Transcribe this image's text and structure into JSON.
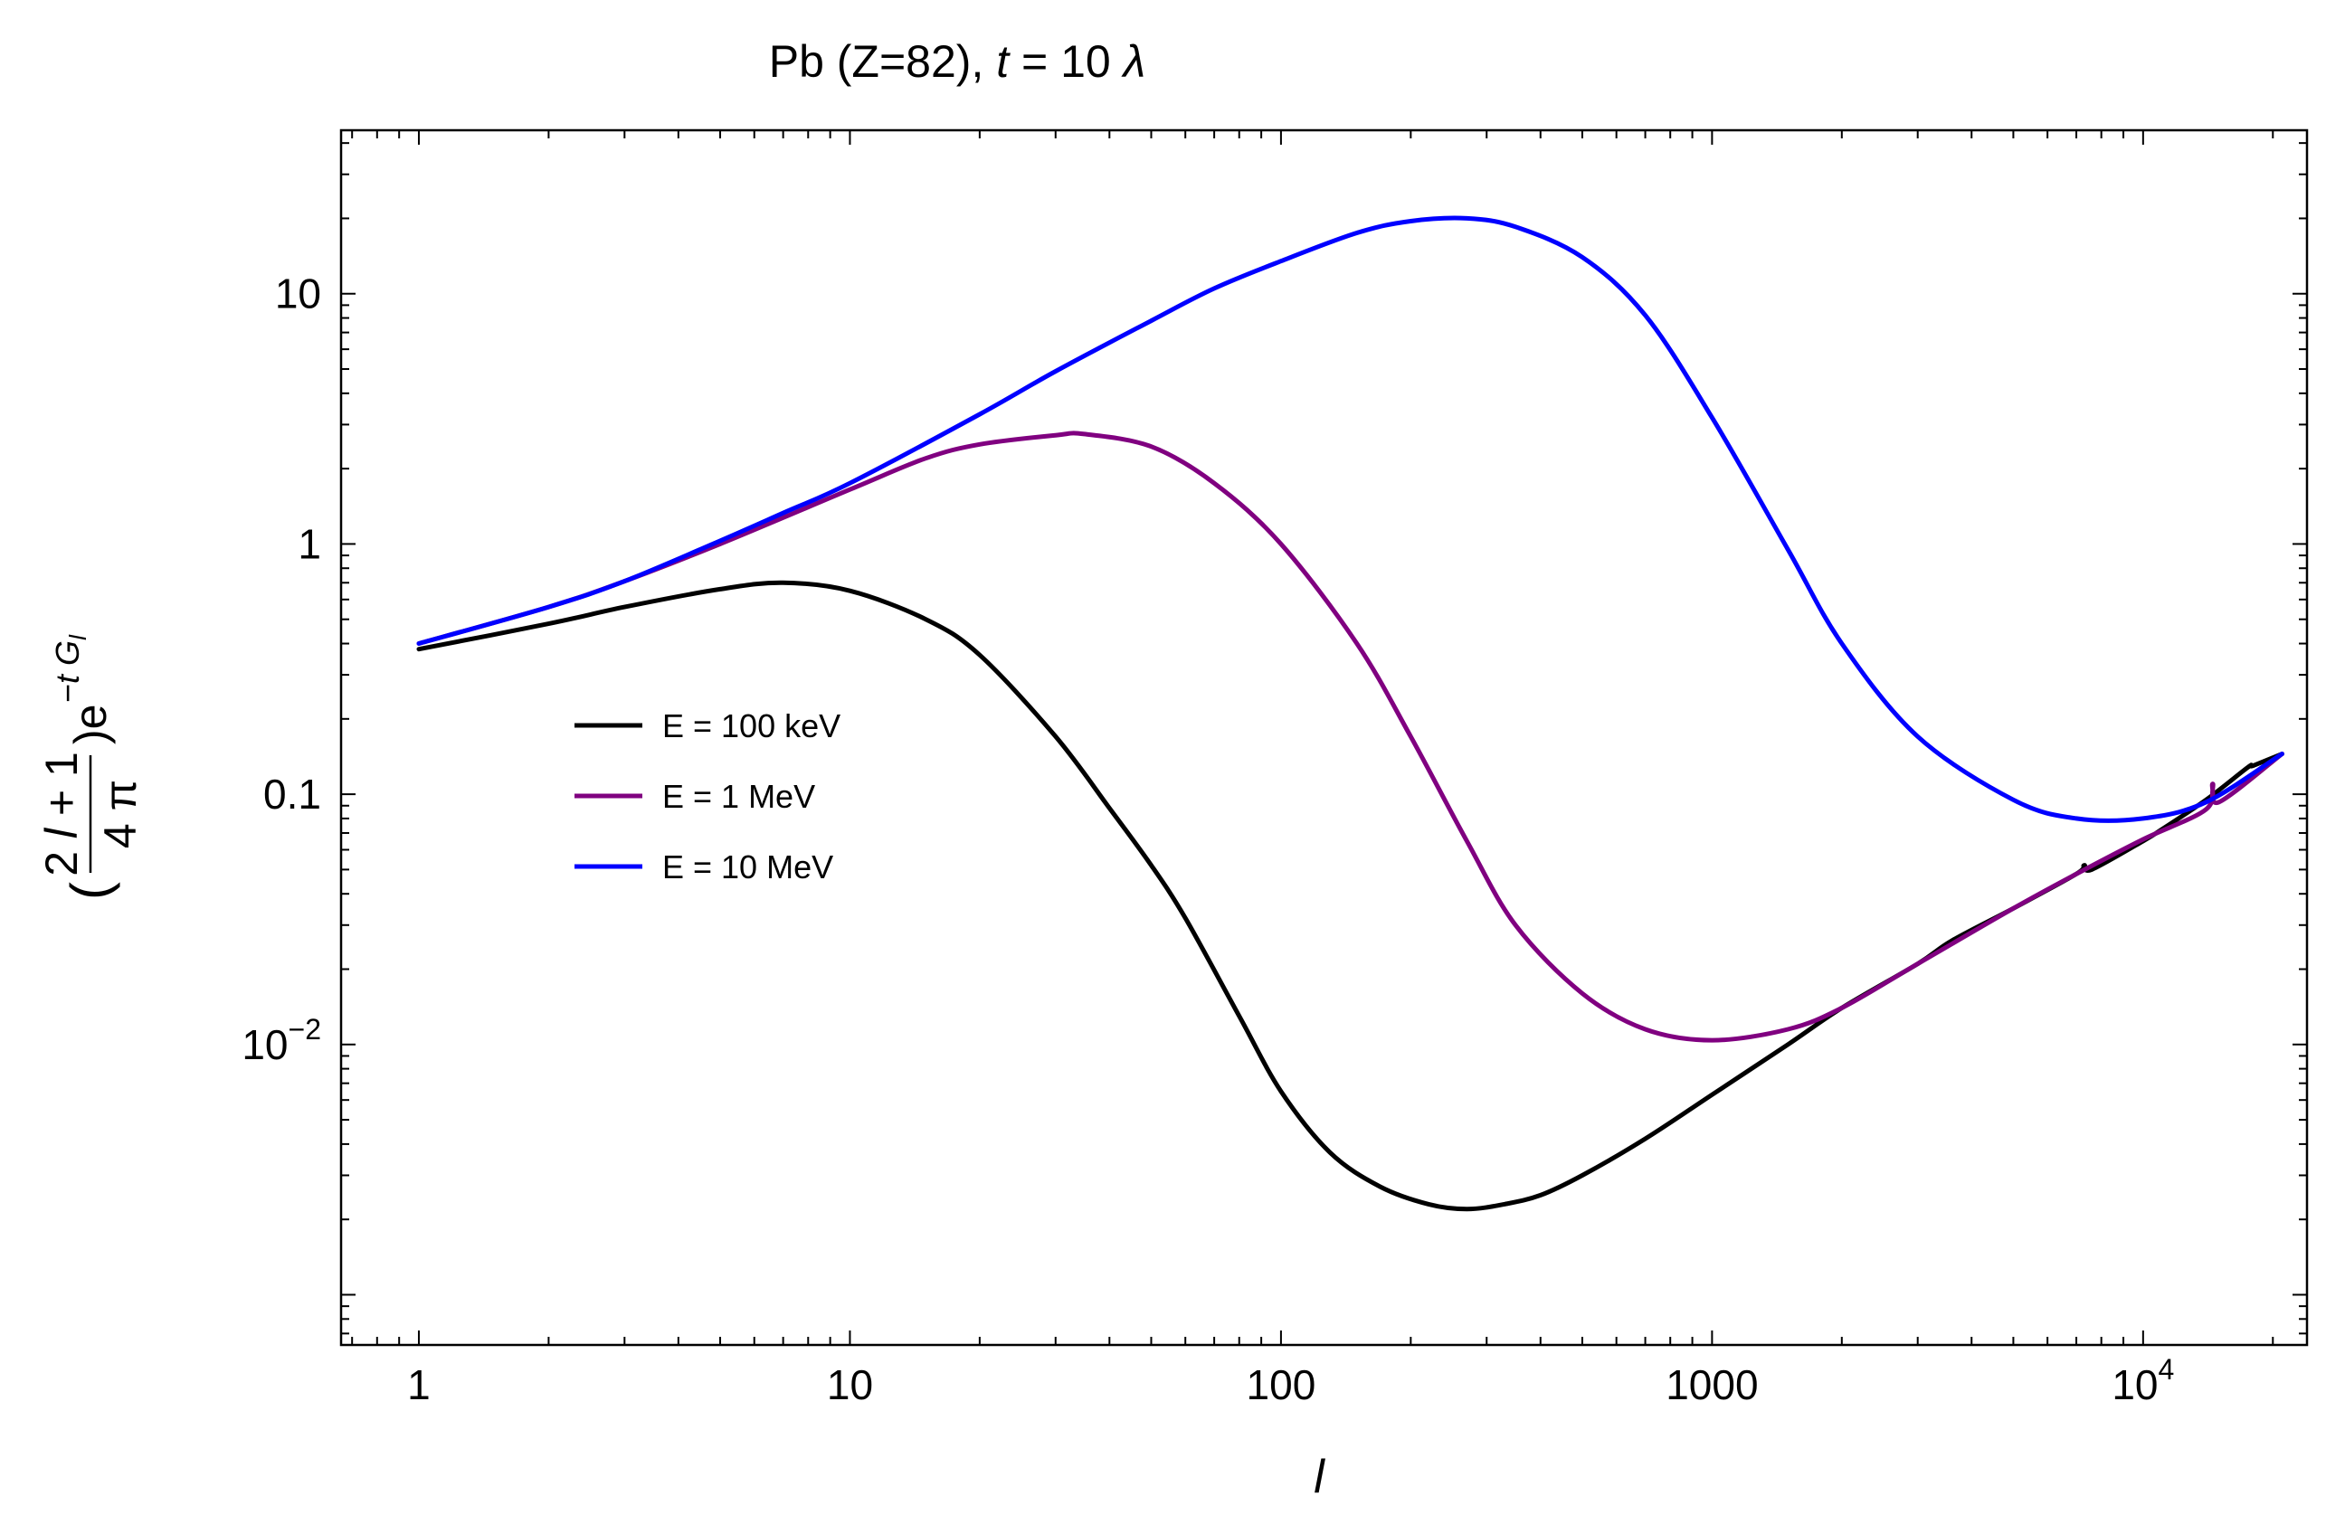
{
  "chart_data": {
    "type": "line",
    "title": {
      "prefix": "Pb (Z=82), ",
      "var": "t",
      "eq": " = 10 ",
      "unit": "λ"
    },
    "xlabel": "l",
    "ylabel": {
      "num_coef": "2 ",
      "num_var": "l",
      "num_rest": " + 1",
      "den": "4 π",
      "open": "(",
      "close": ")e",
      "exp_minus": "−",
      "exp_t": "t",
      "exp_G": "G",
      "exp_sub": "l"
    },
    "xscale": "log",
    "yscale": "log",
    "xlim": [
      0.66,
      24000
    ],
    "ylim": [
      0.00063,
      45
    ],
    "xticks": [
      {
        "v": 1,
        "label": "1"
      },
      {
        "v": 10,
        "label": "10"
      },
      {
        "v": 100,
        "label": "100"
      },
      {
        "v": 1000,
        "label": "1000"
      },
      {
        "v": 10000,
        "label": "10",
        "sup": "4"
      }
    ],
    "yticks": [
      {
        "v": 0.01,
        "label": "10",
        "sup": "−2"
      },
      {
        "v": 0.1,
        "label": "0.1"
      },
      {
        "v": 1,
        "label": "1"
      },
      {
        "v": 10,
        "label": "10"
      }
    ],
    "legend_position": "middle-left",
    "series": [
      {
        "name": "E = 100 keV",
        "color": "#000000",
        "x": [
          1,
          2,
          3,
          5,
          7,
          10,
          15,
          20,
          30,
          40,
          50,
          60,
          80,
          100,
          130,
          170,
          220,
          270,
          330,
          400,
          500,
          700,
          1000,
          1500,
          2000,
          3000,
          3600,
          5000,
          7000,
          7300,
          7600,
          10000,
          11000,
          14000,
          17500,
          18000,
          21000
        ],
        "y": [
          0.38,
          0.48,
          0.56,
          0.66,
          0.7,
          0.65,
          0.5,
          0.36,
          0.17,
          0.088,
          0.052,
          0.032,
          0.013,
          0.0065,
          0.0037,
          0.0027,
          0.0023,
          0.0022,
          0.0023,
          0.0025,
          0.003,
          0.0042,
          0.0063,
          0.01,
          0.014,
          0.021,
          0.026,
          0.035,
          0.048,
          0.052,
          0.05,
          0.065,
          0.072,
          0.095,
          0.128,
          0.13,
          0.145
        ]
      },
      {
        "name": "E = 1 MeV",
        "color": "#800080",
        "x": [
          1,
          2,
          3,
          5,
          10,
          15,
          20,
          30,
          35,
          50,
          70,
          100,
          150,
          200,
          270,
          350,
          500,
          700,
          1000,
          1500,
          2000,
          3000,
          5000,
          7000,
          10000,
          14000,
          14500,
          15000,
          21000
        ],
        "y": [
          0.4,
          0.56,
          0.71,
          1.0,
          1.65,
          2.2,
          2.5,
          2.72,
          2.75,
          2.45,
          1.75,
          1.0,
          0.4,
          0.17,
          0.065,
          0.03,
          0.016,
          0.0115,
          0.0104,
          0.0115,
          0.014,
          0.021,
          0.035,
          0.048,
          0.066,
          0.087,
          0.11,
          0.093,
          0.145
        ]
      },
      {
        "name": "E = 10 MeV",
        "color": "#0000ff",
        "x": [
          1,
          2,
          3,
          5,
          7,
          10,
          20,
          30,
          50,
          70,
          100,
          150,
          200,
          270,
          350,
          500,
          700,
          1000,
          1500,
          2000,
          3000,
          5000,
          7000,
          10000,
          14000,
          21000
        ],
        "y": [
          0.4,
          0.56,
          0.71,
          1.03,
          1.33,
          1.75,
          3.3,
          4.9,
          7.8,
          10.5,
          13.5,
          17.5,
          19.5,
          20.0,
          18.5,
          14.0,
          8.2,
          3.2,
          0.95,
          0.4,
          0.17,
          0.095,
          0.08,
          0.08,
          0.093,
          0.145
        ]
      }
    ]
  }
}
